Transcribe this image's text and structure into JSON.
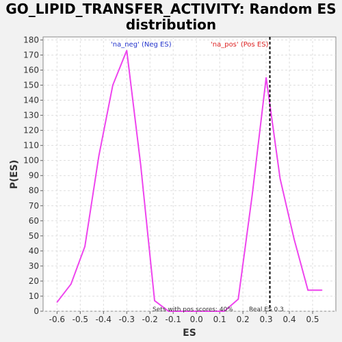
{
  "chart_data": {
    "type": "line",
    "title_line1": "GO_LIPID_TRANSFER_ACTIVITY: Random ES",
    "title_line2": "distribution",
    "xlabel": "ES",
    "ylabel": "P(ES)",
    "xlim": [
      -0.66,
      0.6
    ],
    "ylim": [
      0,
      182
    ],
    "xticks": [
      -0.6,
      -0.5,
      -0.4,
      -0.3,
      -0.2,
      -0.1,
      0.0,
      0.1,
      0.2,
      0.3,
      0.4,
      0.5
    ],
    "xtick_labels": [
      "-0.6",
      "-0.5",
      "-0.4",
      "-0.3",
      "-0.2",
      "-0.1",
      "0.0",
      "0.1",
      "0.2",
      "0.3",
      "0.4",
      "0.5"
    ],
    "yticks": [
      0,
      10,
      20,
      30,
      40,
      50,
      60,
      70,
      80,
      90,
      100,
      110,
      120,
      130,
      140,
      150,
      160,
      170,
      180
    ],
    "grid": true,
    "series": [
      {
        "color": "#ee44ee",
        "x": [
          -0.6,
          -0.54,
          -0.48,
          -0.42,
          -0.36,
          -0.3,
          -0.24,
          -0.18,
          -0.12,
          -0.06,
          0.0,
          0.06,
          0.12,
          0.18,
          0.24,
          0.3,
          0.36,
          0.42,
          0.48,
          0.54
        ],
        "y": [
          6,
          18,
          43,
          103,
          150,
          173,
          97,
          7,
          0,
          0,
          0,
          0,
          0,
          8,
          77,
          155,
          88,
          48,
          14,
          14
        ]
      }
    ],
    "real_es_x": 0.3,
    "annotations": {
      "neg": "'na_neg' (Neg ES)",
      "pos": "'na_pos' (Pos ES)",
      "sets_pos": "Sets with pos scores: 40%",
      "real_es": "Real ES 0.3"
    },
    "colors": {
      "neg_text": "#2233cc",
      "pos_text": "#dd2222",
      "line": "#ee44ee",
      "grid": "#dddddd"
    }
  }
}
